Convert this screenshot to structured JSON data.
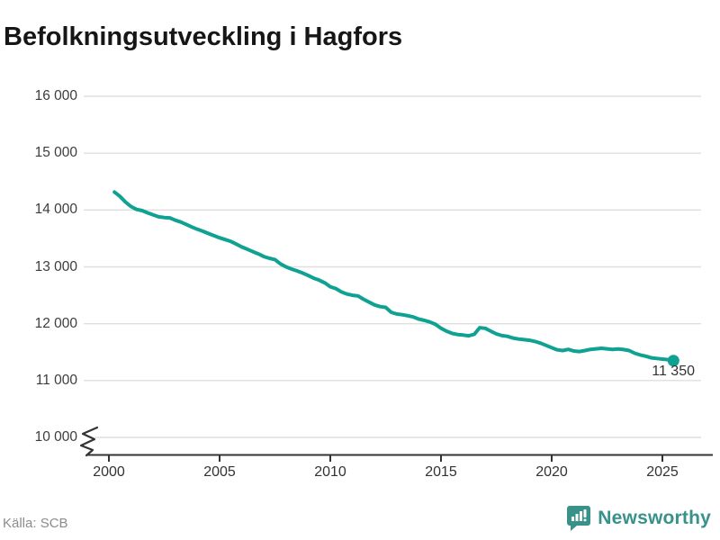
{
  "title": "Befolkningsutveckling i Hagfors",
  "source": "Källa: SCB",
  "logo": {
    "text": "Newsworthy"
  },
  "colors": {
    "line": "#0FA293",
    "grid": "#DFDFDF",
    "axis": "#333333",
    "title_text": "#161616",
    "tick_text": "#3D3D3D",
    "logo_teal": "#38928A",
    "source_text": "#8C8C8C"
  },
  "chart_data": {
    "type": "line",
    "title": "Befolkningsutveckling i Hagfors",
    "xlabel": "",
    "ylabel": "",
    "xlim": [
      1999.5,
      2026.3
    ],
    "ylim": [
      10000,
      16000
    ],
    "axis_break_at_bottom": true,
    "grid": "horizontal",
    "legend_position": "none",
    "xticks": [
      2000,
      2005,
      2010,
      2015,
      2020,
      2025
    ],
    "yticks": [
      {
        "value": 10000,
        "label": "10 000"
      },
      {
        "value": 11000,
        "label": "11 000"
      },
      {
        "value": 12000,
        "label": "12 000"
      },
      {
        "value": 13000,
        "label": "13 000"
      },
      {
        "value": 14000,
        "label": "14 000"
      },
      {
        "value": 15000,
        "label": "15 000"
      },
      {
        "value": 16000,
        "label": "16 000"
      }
    ],
    "end_label": "11 350",
    "last_value": 11350,
    "series": [
      {
        "name": "Befolkning i Hagfors",
        "points": [
          [
            2000.25,
            14315
          ],
          [
            2000.5,
            14240
          ],
          [
            2000.75,
            14140
          ],
          [
            2001,
            14060
          ],
          [
            2001.25,
            14010
          ],
          [
            2001.5,
            13990
          ],
          [
            2001.75,
            13950
          ],
          [
            2002,
            13915
          ],
          [
            2002.25,
            13880
          ],
          [
            2002.5,
            13868
          ],
          [
            2002.75,
            13862
          ],
          [
            2003,
            13820
          ],
          [
            2003.25,
            13788
          ],
          [
            2003.5,
            13745
          ],
          [
            2003.75,
            13700
          ],
          [
            2004,
            13660
          ],
          [
            2004.25,
            13625
          ],
          [
            2004.5,
            13585
          ],
          [
            2004.75,
            13548
          ],
          [
            2005,
            13512
          ],
          [
            2005.25,
            13480
          ],
          [
            2005.5,
            13448
          ],
          [
            2005.75,
            13400
          ],
          [
            2006,
            13350
          ],
          [
            2006.25,
            13310
          ],
          [
            2006.5,
            13268
          ],
          [
            2006.75,
            13228
          ],
          [
            2007,
            13180
          ],
          [
            2007.25,
            13150
          ],
          [
            2007.5,
            13128
          ],
          [
            2007.75,
            13052
          ],
          [
            2008,
            13000
          ],
          [
            2008.25,
            12960
          ],
          [
            2008.5,
            12928
          ],
          [
            2008.75,
            12890
          ],
          [
            2009,
            12848
          ],
          [
            2009.25,
            12800
          ],
          [
            2009.5,
            12765
          ],
          [
            2009.75,
            12718
          ],
          [
            2010,
            12650
          ],
          [
            2010.25,
            12618
          ],
          [
            2010.5,
            12560
          ],
          [
            2010.75,
            12522
          ],
          [
            2011,
            12500
          ],
          [
            2011.25,
            12488
          ],
          [
            2011.5,
            12430
          ],
          [
            2011.75,
            12380
          ],
          [
            2012,
            12330
          ],
          [
            2012.25,
            12300
          ],
          [
            2012.5,
            12288
          ],
          [
            2012.75,
            12200
          ],
          [
            2013,
            12170
          ],
          [
            2013.25,
            12158
          ],
          [
            2013.5,
            12140
          ],
          [
            2013.75,
            12118
          ],
          [
            2014,
            12080
          ],
          [
            2014.25,
            12058
          ],
          [
            2014.5,
            12030
          ],
          [
            2014.75,
            11988
          ],
          [
            2015,
            11920
          ],
          [
            2015.25,
            11868
          ],
          [
            2015.5,
            11830
          ],
          [
            2015.75,
            11810
          ],
          [
            2016,
            11800
          ],
          [
            2016.25,
            11788
          ],
          [
            2016.5,
            11812
          ],
          [
            2016.75,
            11930
          ],
          [
            2017,
            11918
          ],
          [
            2017.25,
            11868
          ],
          [
            2017.5,
            11820
          ],
          [
            2017.75,
            11790
          ],
          [
            2018,
            11778
          ],
          [
            2018.25,
            11748
          ],
          [
            2018.5,
            11730
          ],
          [
            2018.75,
            11720
          ],
          [
            2019,
            11708
          ],
          [
            2019.25,
            11688
          ],
          [
            2019.5,
            11658
          ],
          [
            2019.75,
            11618
          ],
          [
            2020,
            11578
          ],
          [
            2020.25,
            11540
          ],
          [
            2020.5,
            11528
          ],
          [
            2020.75,
            11548
          ],
          [
            2021,
            11520
          ],
          [
            2021.25,
            11510
          ],
          [
            2021.5,
            11528
          ],
          [
            2021.75,
            11548
          ],
          [
            2022,
            11558
          ],
          [
            2022.25,
            11568
          ],
          [
            2022.5,
            11558
          ],
          [
            2022.75,
            11548
          ],
          [
            2023,
            11555
          ],
          [
            2023.25,
            11545
          ],
          [
            2023.5,
            11528
          ],
          [
            2023.75,
            11480
          ],
          [
            2024,
            11450
          ],
          [
            2024.25,
            11428
          ],
          [
            2024.5,
            11400
          ],
          [
            2024.75,
            11388
          ],
          [
            2025,
            11378
          ],
          [
            2025.25,
            11368
          ],
          [
            2025.5,
            11350
          ]
        ]
      }
    ]
  }
}
